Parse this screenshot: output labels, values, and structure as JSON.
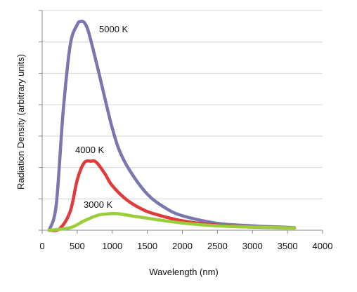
{
  "chart_data": {
    "type": "line",
    "title": "",
    "xlabel": "Wavelength (nm)",
    "ylabel": "Radiation Density (arbitrary units)",
    "xlim": [
      0,
      4000
    ],
    "ylim": [
      0,
      7
    ],
    "xticks": [
      0,
      500,
      1000,
      1500,
      2000,
      2500,
      3000,
      3500,
      4000
    ],
    "grid": "horizontal",
    "series": [
      {
        "name": "5000 K",
        "color": "#7a76b0",
        "x": [
          100,
          200,
          300,
          400,
          500,
          550,
          600,
          650,
          700,
          800,
          900,
          1000,
          1100,
          1250,
          1500,
          1750,
          2000,
          2500,
          3000,
          3600
        ],
        "y": [
          0.0,
          0.8,
          3.8,
          5.9,
          6.55,
          6.65,
          6.62,
          6.4,
          6.0,
          5.1,
          4.15,
          3.25,
          2.55,
          1.9,
          1.15,
          0.72,
          0.46,
          0.22,
          0.14,
          0.08
        ]
      },
      {
        "name": "4000 K",
        "color": "#e03a3a",
        "x": [
          100,
          250,
          400,
          500,
          600,
          700,
          750,
          800,
          900,
          1000,
          1200,
          1400,
          1600,
          2000,
          2500,
          3000,
          3600
        ],
        "y": [
          0.0,
          0.05,
          0.6,
          1.6,
          2.15,
          2.2,
          2.2,
          2.1,
          1.78,
          1.42,
          0.98,
          0.7,
          0.52,
          0.3,
          0.16,
          0.1,
          0.07
        ]
      },
      {
        "name": "3000 K",
        "color": "#9acd3a",
        "x": [
          100,
          400,
          600,
          800,
          1000,
          1100,
          1300,
          1600,
          2000,
          2500,
          3000,
          3600
        ],
        "y": [
          0.0,
          0.08,
          0.3,
          0.48,
          0.53,
          0.52,
          0.45,
          0.35,
          0.23,
          0.14,
          0.1,
          0.07
        ]
      }
    ]
  }
}
